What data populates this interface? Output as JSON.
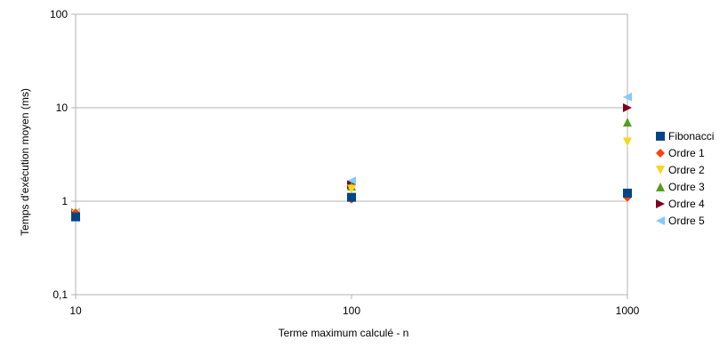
{
  "chart_data": {
    "type": "scatter",
    "xscale": "log",
    "yscale": "log",
    "xlim": [
      10,
      1000
    ],
    "ylim": [
      0.1,
      100
    ],
    "xlabel": "Terme maximum calculé - n",
    "ylabel": "Temps d'exécution moyen (ms)",
    "xticks": [
      10,
      100,
      1000
    ],
    "xtick_labels": [
      "10",
      "100",
      "1000"
    ],
    "yticks": [
      0.1,
      1,
      10,
      100
    ],
    "ytick_labels": [
      "0,1",
      "1",
      "10",
      "100"
    ],
    "grid": "horizontal",
    "legend": "right",
    "series": [
      {
        "name": "Fibonacci",
        "marker": "square",
        "color": "#004586",
        "x": [
          10,
          100,
          1000
        ],
        "y": [
          0.68,
          1.1,
          1.22
        ]
      },
      {
        "name": "Ordre 1",
        "marker": "diamond",
        "color": "#ff420e",
        "x": [
          10,
          100,
          1000
        ],
        "y": [
          0.75,
          1.05,
          1.1
        ]
      },
      {
        "name": "Ordre 2",
        "marker": "triangle-down",
        "color": "#ffd320",
        "x": [
          10,
          100,
          1000
        ],
        "y": [
          0.73,
          1.35,
          4.3
        ]
      },
      {
        "name": "Ordre 3",
        "marker": "triangle-up",
        "color": "#579d1c",
        "x": [
          10,
          100,
          1000
        ],
        "y": [
          0.72,
          1.45,
          7.0
        ]
      },
      {
        "name": "Ordre 4",
        "marker": "triangle-right",
        "color": "#7e0021",
        "x": [
          10,
          100,
          1000
        ],
        "y": [
          0.75,
          1.5,
          10.0
        ]
      },
      {
        "name": "Ordre 5",
        "marker": "triangle-left",
        "color": "#83caff",
        "x": [
          10,
          100,
          1000
        ],
        "y": [
          0.76,
          1.65,
          13.0
        ]
      }
    ]
  }
}
